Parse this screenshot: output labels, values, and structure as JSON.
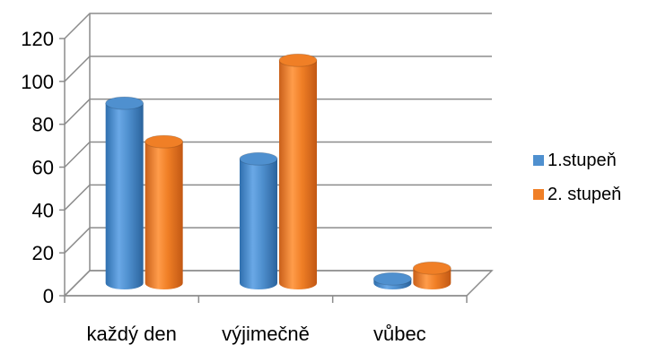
{
  "chart_data": {
    "type": "bar",
    "style": "3d-cylinder",
    "categories": [
      "každý den",
      "výjimečně",
      "vůbec"
    ],
    "series": [
      {
        "name": "1.stupeň",
        "values": [
          84,
          58,
          2
        ],
        "color": "#4f90cf"
      },
      {
        "name": "2. stupeň",
        "values": [
          66,
          104,
          7
        ],
        "color": "#f07f26"
      }
    ],
    "y_ticks": [
      "0",
      "20",
      "40",
      "60",
      "80",
      "100",
      "120"
    ],
    "ylim": [
      0,
      120
    ],
    "grid": true,
    "legend": "right"
  }
}
